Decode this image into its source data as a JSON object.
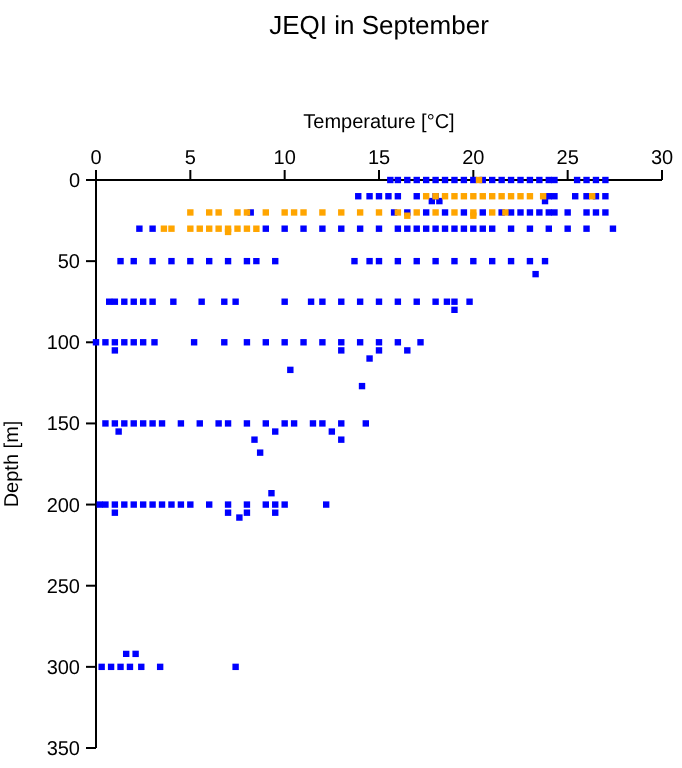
{
  "chart_data": {
    "type": "scatter",
    "title": "JEQI in September",
    "xlabel": "Temperature [°C]",
    "ylabel": "Depth [m]",
    "xlim": [
      0,
      30
    ],
    "xticks": [
      0,
      5,
      10,
      15,
      20,
      25,
      30
    ],
    "ylim": [
      350,
      0
    ],
    "yticks": [
      0,
      50,
      100,
      150,
      200,
      250,
      300,
      350
    ],
    "marker": "square",
    "series": [
      {
        "color": "#0000ff",
        "x": [
          15.6,
          16,
          16.5,
          17,
          17.5,
          18,
          18.5,
          19,
          19.5,
          20,
          20.5,
          21,
          21.5,
          22,
          22.5,
          23,
          23.5,
          24,
          24.3,
          25.5,
          26,
          26.5,
          27,
          13.9,
          14.5,
          15,
          15.5,
          16,
          17,
          18,
          24,
          24.3,
          25.4,
          26,
          26.5,
          27,
          17.8,
          18.2,
          23.8,
          8.2,
          15.8,
          16.5,
          17.5,
          18.5,
          19.5,
          20.5,
          21.5,
          22,
          22.5,
          23,
          23.5,
          24,
          24.3,
          25,
          26,
          26.5,
          27,
          2.3,
          3,
          9,
          10,
          11,
          12,
          13,
          14,
          15,
          16,
          16.5,
          17,
          17.5,
          18,
          18.5,
          19,
          19.5,
          20,
          20.5,
          21,
          22,
          23,
          24,
          25,
          26,
          27.4,
          1.3,
          2,
          3,
          4,
          5,
          6,
          7,
          8,
          8.5,
          9.5,
          13.7,
          14.5,
          15,
          16,
          17,
          18,
          19,
          20,
          21,
          22,
          23,
          23.8,
          23.3,
          0.7,
          1,
          1.5,
          2,
          2.5,
          3,
          4.1,
          5.6,
          6.8,
          7.4,
          10,
          11.4,
          12,
          13,
          14,
          15,
          16,
          17,
          18,
          18.6,
          19,
          19.8,
          19,
          0,
          0.5,
          1,
          1.5,
          2,
          2.5,
          3.1,
          5.2,
          6.8,
          8,
          9,
          10,
          11,
          12,
          13,
          14,
          15,
          16,
          17.2,
          1,
          13,
          15,
          16.5,
          10.3,
          14.1,
          14.5,
          0.5,
          1,
          1.5,
          2,
          2.5,
          3,
          3.5,
          4.5,
          5.5,
          6.5,
          7,
          8,
          9,
          10,
          10.5,
          11.5,
          12,
          13,
          14.3,
          1.2,
          9.5,
          12.5,
          8.4,
          13,
          8.7,
          0.2,
          0.5,
          1,
          1.5,
          2,
          2.5,
          3,
          3.5,
          4,
          4.5,
          5,
          6,
          7,
          8,
          9,
          9.5,
          10,
          12.2,
          1,
          7,
          8,
          9.5,
          9.3,
          7.6,
          0.3,
          0.8,
          1.3,
          1.8,
          2.4,
          3.4,
          7.4,
          1.6,
          2.1
        ],
        "values": [
          0,
          0,
          0,
          0,
          0,
          0,
          0,
          0,
          0,
          0,
          0,
          0,
          0,
          0,
          0,
          0,
          0,
          0,
          0,
          0,
          0,
          0,
          0,
          10,
          10,
          10,
          10,
          10,
          10,
          10,
          10,
          10,
          10,
          10,
          10,
          10,
          13,
          13,
          13,
          20,
          20,
          20,
          20,
          20,
          20,
          20,
          20,
          20,
          20,
          20,
          20,
          20,
          20,
          20,
          20,
          20,
          20,
          30,
          30,
          30,
          30,
          30,
          30,
          30,
          30,
          30,
          30,
          30,
          30,
          30,
          30,
          30,
          30,
          30,
          30,
          30,
          30,
          30,
          30,
          30,
          30,
          30,
          30,
          50,
          50,
          50,
          50,
          50,
          50,
          50,
          50,
          50,
          50,
          50,
          50,
          50,
          50,
          50,
          50,
          50,
          50,
          50,
          50,
          50,
          50,
          58,
          75,
          75,
          75,
          75,
          75,
          75,
          75,
          75,
          75,
          75,
          75,
          75,
          75,
          75,
          75,
          75,
          75,
          75,
          75,
          75,
          75,
          75,
          80,
          100,
          100,
          100,
          100,
          100,
          100,
          100,
          100,
          100,
          100,
          100,
          100,
          100,
          100,
          100,
          100,
          100,
          100,
          100,
          105,
          105,
          105,
          105,
          117,
          127,
          110,
          150,
          150,
          150,
          150,
          150,
          150,
          150,
          150,
          150,
          150,
          150,
          150,
          150,
          150,
          150,
          150,
          150,
          150,
          150,
          155,
          155,
          155,
          160,
          160,
          168,
          200,
          200,
          200,
          200,
          200,
          200,
          200,
          200,
          200,
          200,
          200,
          200,
          200,
          200,
          200,
          200,
          200,
          200,
          205,
          205,
          205,
          205,
          193,
          208,
          300,
          300,
          300,
          300,
          300,
          300,
          300,
          292,
          292
        ]
      },
      {
        "color": "#ffa500",
        "x": [
          20.3,
          17.5,
          18,
          18.5,
          19,
          19.5,
          20,
          20.5,
          21,
          21.5,
          22,
          22.5,
          23,
          23.7,
          26.3,
          5,
          6,
          6.5,
          7.5,
          8,
          9,
          10,
          10.5,
          11,
          12,
          13,
          14,
          15,
          16,
          17,
          18,
          19,
          20,
          21,
          21.7,
          16.5,
          20,
          3.6,
          4,
          5,
          5.5,
          6,
          6.5,
          7,
          7.5,
          8,
          8.5,
          7
        ],
        "values": [
          0,
          10,
          10,
          10,
          10,
          10,
          10,
          10,
          10,
          10,
          10,
          10,
          10,
          10,
          10,
          20,
          20,
          20,
          20,
          20,
          20,
          20,
          20,
          20,
          20,
          20,
          20,
          20,
          20,
          20,
          20,
          20,
          20,
          20,
          20,
          22,
          22,
          30,
          30,
          30,
          30,
          30,
          30,
          30,
          30,
          30,
          30,
          32
        ]
      }
    ]
  }
}
